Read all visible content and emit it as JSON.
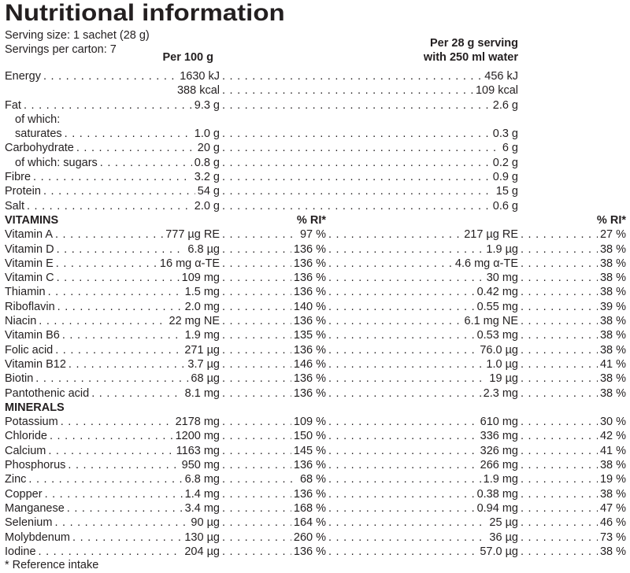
{
  "title": "Nutritional information",
  "serving_size_label": "Serving size: 1 sachet (28 g)",
  "servings_per_carton_label": "Servings per carton: 7",
  "columns": {
    "per_100g": "Per 100 g",
    "per_serving_line1": "Per 28 g serving",
    "per_serving_line2": "with 250 ml water",
    "ri_header": "% RI*"
  },
  "footnote": "* Reference intake",
  "text_color": "#231f20",
  "rows": [
    {
      "kind": "plain",
      "label": "Energy",
      "per100": "1630 kJ",
      "serving": "456 kJ"
    },
    {
      "kind": "plain",
      "label": "",
      "per100": "388 kcal",
      "serving": "109 kcal",
      "no_leader": true
    },
    {
      "kind": "plain",
      "label": "Fat",
      "per100": "9.3 g",
      "serving": "2.6 g"
    },
    {
      "kind": "label-only",
      "label": "of which:",
      "indent": true
    },
    {
      "kind": "plain",
      "label": "saturates",
      "indent": true,
      "per100": "1.0 g",
      "serving": "0.3 g"
    },
    {
      "kind": "plain",
      "label": "Carbohydrate",
      "per100": "20 g",
      "serving": "6 g"
    },
    {
      "kind": "plain",
      "label": "of which: sugars",
      "indent": true,
      "per100": "0.8 g",
      "serving": "0.2 g"
    },
    {
      "kind": "plain",
      "label": "Fibre",
      "per100": "3.2 g",
      "serving": "0.9 g"
    },
    {
      "kind": "plain",
      "label": "Protein",
      "per100": "54 g",
      "serving": "15 g"
    },
    {
      "kind": "plain",
      "label": "Salt",
      "per100": "2.0 g",
      "serving": "0.6 g"
    },
    {
      "kind": "section",
      "label": "VITAMINS",
      "show_ri_headers": true
    },
    {
      "kind": "detail",
      "label": "Vitamin A",
      "per100": "777 µg RE",
      "ri100": "97 %",
      "serving": "217 µg RE",
      "ri_serving": "27 %"
    },
    {
      "kind": "detail",
      "label": "Vitamin D",
      "per100": "6.8 µg",
      "ri100": "136 %",
      "serving": "1.9 µg",
      "ri_serving": "38 %"
    },
    {
      "kind": "detail",
      "label": "Vitamin E",
      "per100": "16 mg α-TE",
      "ri100": "136 %",
      "serving": "4.6 mg α-TE",
      "ri_serving": "38 %"
    },
    {
      "kind": "detail",
      "label": "Vitamin C",
      "per100": "109 mg",
      "ri100": "136 %",
      "serving": "30 mg",
      "ri_serving": "38 %"
    },
    {
      "kind": "detail",
      "label": "Thiamin",
      "per100": "1.5 mg",
      "ri100": "136 %",
      "serving": "0.42 mg",
      "ri_serving": "38 %"
    },
    {
      "kind": "detail",
      "label": "Riboflavin",
      "per100": "2.0 mg",
      "ri100": "140 %",
      "serving": "0.55 mg",
      "ri_serving": "39 %"
    },
    {
      "kind": "detail",
      "label": "Niacin",
      "per100": "22 mg NE",
      "ri100": "136 %",
      "serving": "6.1 mg NE",
      "ri_serving": "38 %"
    },
    {
      "kind": "detail",
      "label": "Vitamin B6",
      "per100": "1.9 mg",
      "ri100": "135 %",
      "serving": "0.53 mg",
      "ri_serving": "38 %"
    },
    {
      "kind": "detail",
      "label": "Folic acid",
      "per100": "271 µg",
      "ri100": "136 %",
      "serving": "76.0 µg",
      "ri_serving": "38 %"
    },
    {
      "kind": "detail",
      "label": "Vitamin B12",
      "per100": "3.7 µg",
      "ri100": "146 %",
      "serving": "1.0 µg",
      "ri_serving": "41 %"
    },
    {
      "kind": "detail",
      "label": "Biotin",
      "per100": "68 µg",
      "ri100": "136 %",
      "serving": "19 µg",
      "ri_serving": "38 %"
    },
    {
      "kind": "detail",
      "label": "Pantothenic acid",
      "per100": "8.1 mg",
      "ri100": "136 %",
      "serving": "2.3 mg",
      "ri_serving": "38 %"
    },
    {
      "kind": "section",
      "label": "MINERALS",
      "show_ri_headers": false
    },
    {
      "kind": "detail",
      "label": "Potassium",
      "per100": "2178 mg",
      "ri100": "109 %",
      "serving": "610 mg",
      "ri_serving": "30 %"
    },
    {
      "kind": "detail",
      "label": "Chloride",
      "per100": "1200 mg",
      "ri100": "150 %",
      "serving": "336 mg",
      "ri_serving": "42 %"
    },
    {
      "kind": "detail",
      "label": "Calcium",
      "per100": "1163 mg",
      "ri100": "145 %",
      "serving": "326 mg",
      "ri_serving": "41 %"
    },
    {
      "kind": "detail",
      "label": "Phosphorus",
      "per100": "950 mg",
      "ri100": "136 %",
      "serving": "266 mg",
      "ri_serving": "38 %"
    },
    {
      "kind": "detail",
      "label": "Zinc",
      "per100": "6.8 mg",
      "ri100": "68 %",
      "serving": "1.9 mg",
      "ri_serving": "19 %"
    },
    {
      "kind": "detail",
      "label": "Copper",
      "per100": "1.4 mg",
      "ri100": "136 %",
      "serving": "0.38 mg",
      "ri_serving": "38 %"
    },
    {
      "kind": "detail",
      "label": "Manganese",
      "per100": "3.4 mg",
      "ri100": "168 %",
      "serving": "0.94 mg",
      "ri_serving": "47 %"
    },
    {
      "kind": "detail",
      "label": "Selenium",
      "per100": "90 µg",
      "ri100": "164 %",
      "serving": "25 µg",
      "ri_serving": "46 %"
    },
    {
      "kind": "detail",
      "label": "Molybdenum",
      "per100": "130 µg",
      "ri100": "260 %",
      "serving": "36 µg",
      "ri_serving": "73 %"
    },
    {
      "kind": "detail",
      "label": "Iodine",
      "per100": "204 µg",
      "ri100": "136 %",
      "serving": "57.0 µg",
      "ri_serving": "38 %"
    }
  ]
}
